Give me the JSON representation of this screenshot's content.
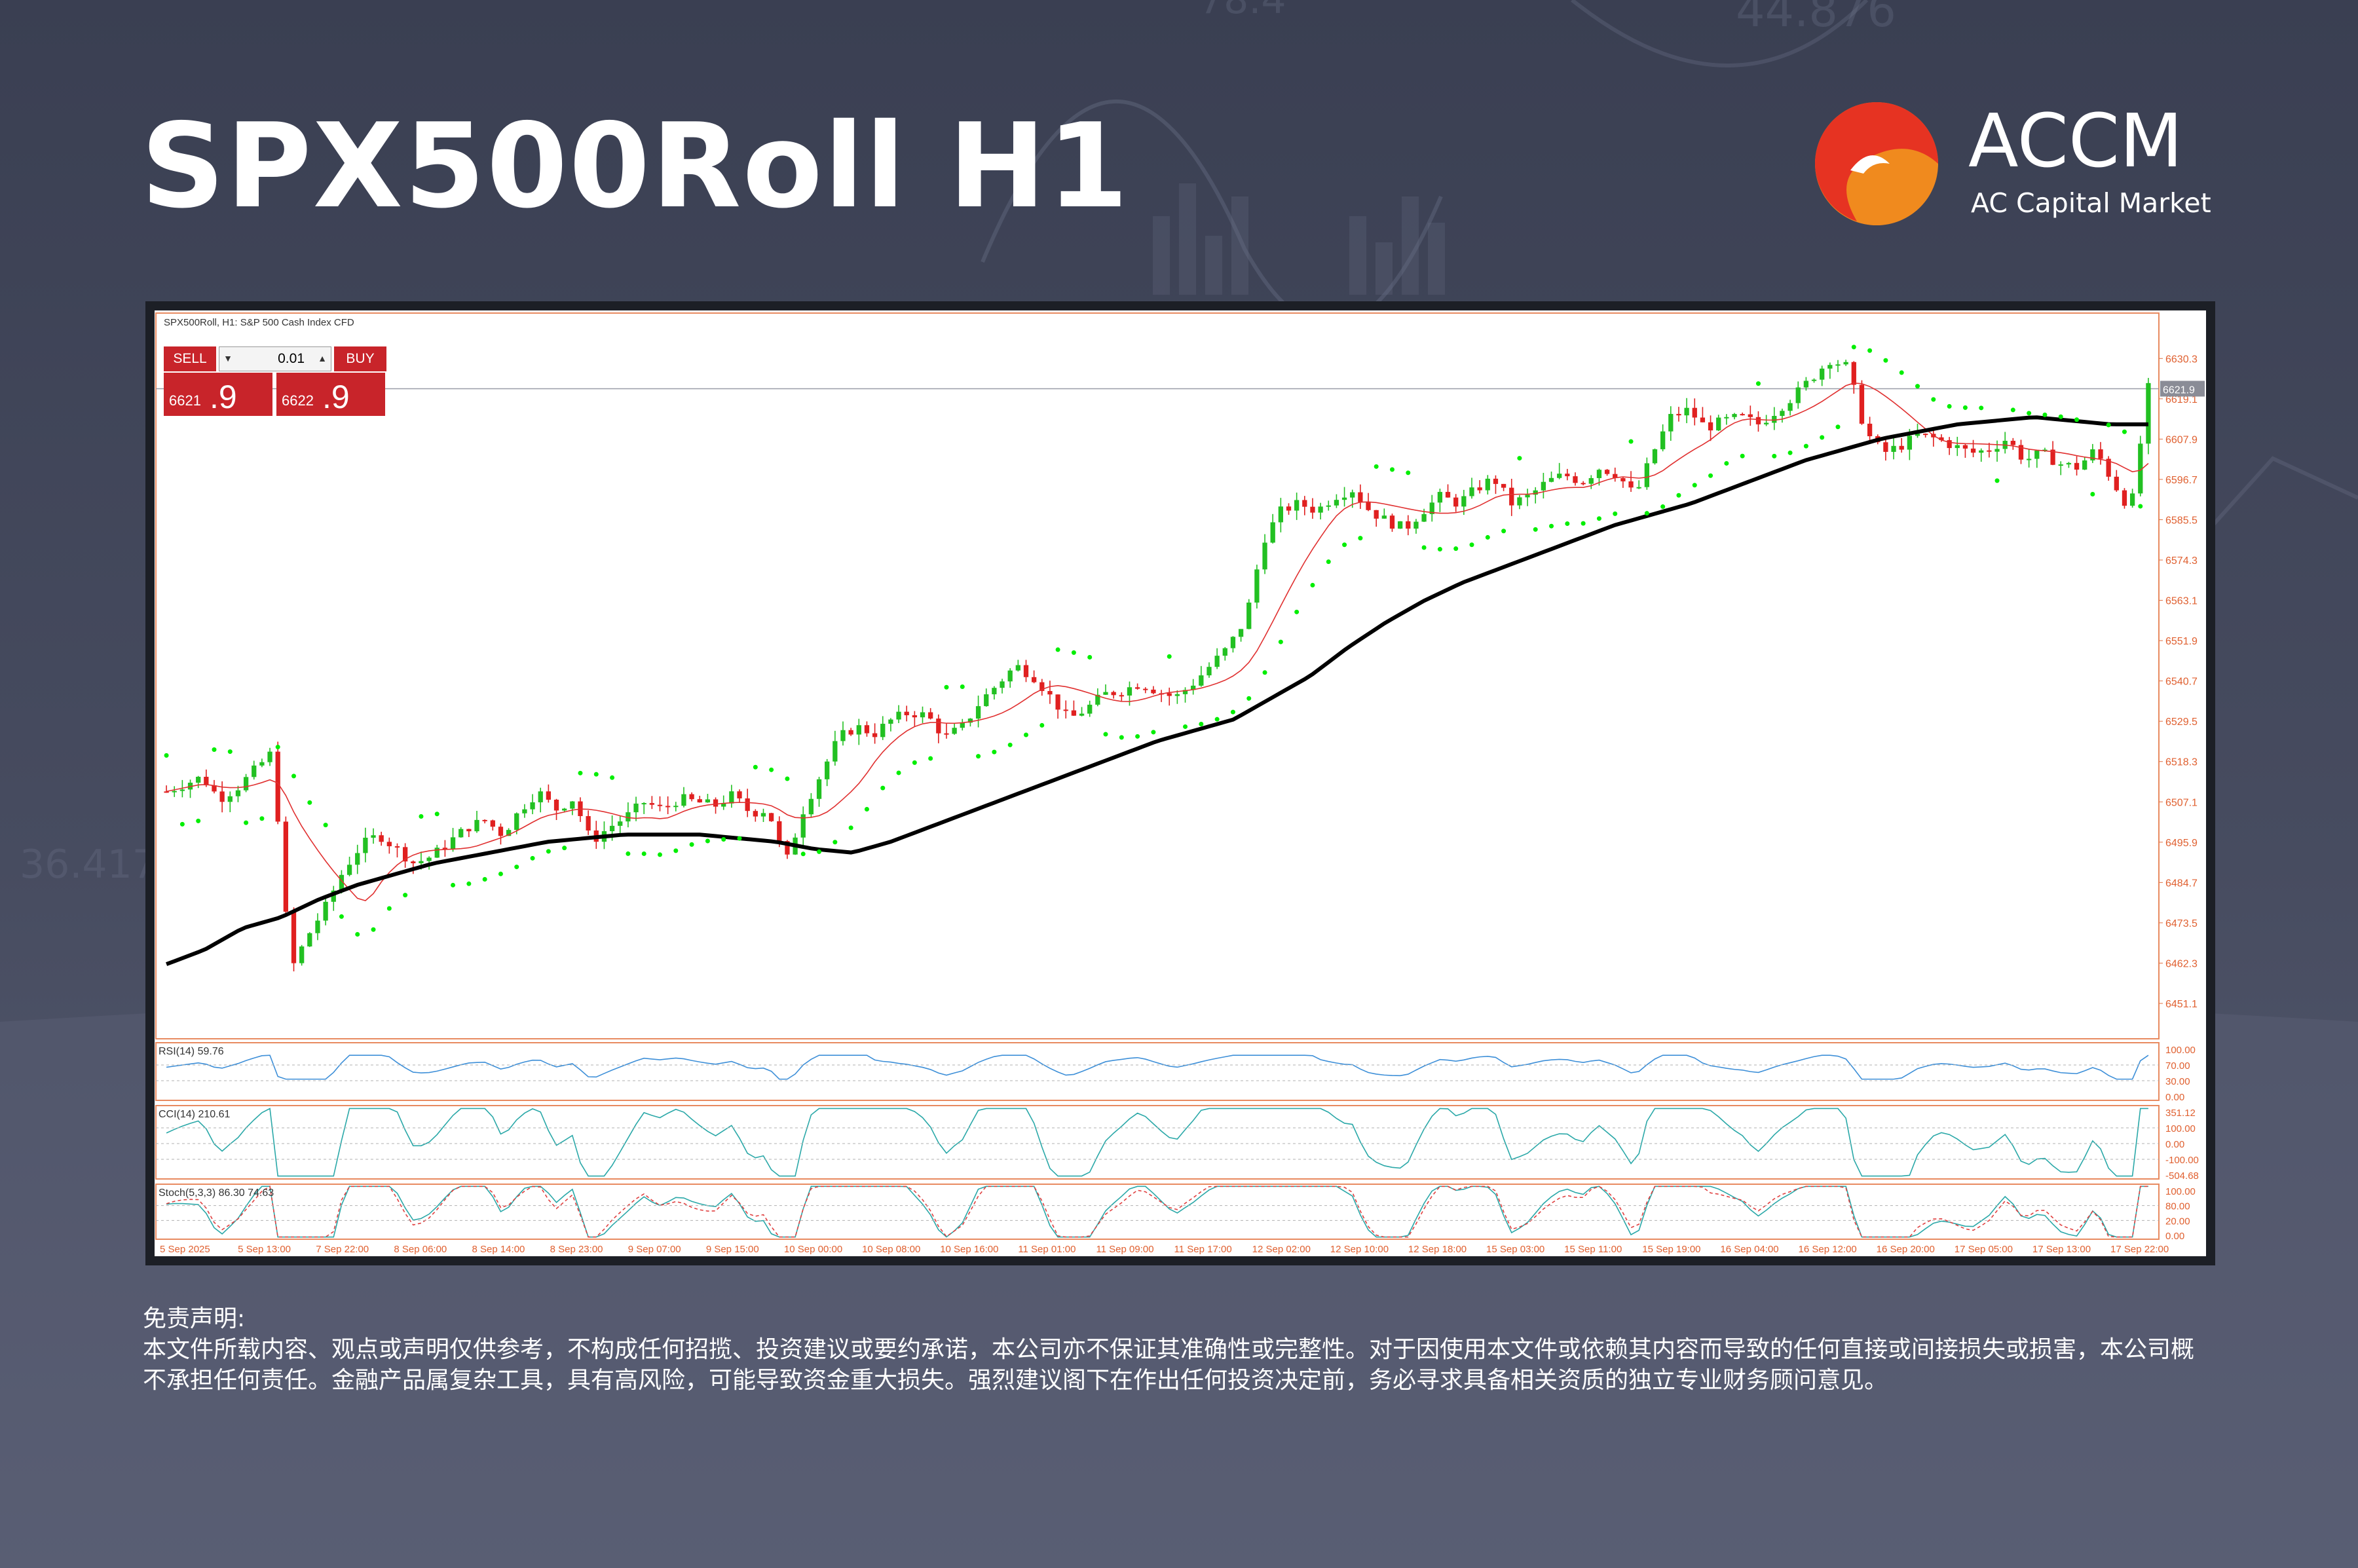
{
  "page": {
    "title": "SPX500Roll H1"
  },
  "brand": {
    "name": "ACCM",
    "subtitle": "AC Capital Market",
    "colors": {
      "orange": "#f08a1e",
      "red": "#e63322"
    }
  },
  "chart_header": "SPX500Roll, H1:  S&P 500 Cash Index CFD",
  "trade_panel": {
    "sell_label": "SELL",
    "buy_label": "BUY",
    "lot": "0.01",
    "sell_price_prefix": "6621",
    "sell_price_big": ".9",
    "buy_price_prefix": "6622",
    "buy_price_big": ".9"
  },
  "disclaimer": {
    "heading": "免责声明:",
    "body": "本文件所载内容、观点或声明仅供参考，不构成任何招揽、投资建议或要约承诺，本公司亦不保证其准确性或完整性。对于因使用本文件或依赖其内容而导致的任何直接或间接损失或损害，本公司概不承担任何责任。金融产品属复杂工具，具有高风险，可能导致资金重大损失。强烈建议阁下在作出任何投资决定前，务必寻求具备相关资质的独立专业财务顾问意见。"
  },
  "chart_data": {
    "type": "candlestick",
    "symbol": "SPX500Roll",
    "timeframe": "H1",
    "current_price": 6621.9,
    "ylim": [
      6442,
      6640
    ],
    "y_ticks": [
      "6630.3",
      "6619.1",
      "6607.9",
      "6596.7",
      "6585.5",
      "6574.3",
      "6563.1",
      "6551.9",
      "6540.7",
      "6529.5",
      "6518.3",
      "6507.1",
      "6495.9",
      "6484.7",
      "6473.5",
      "6462.3",
      "6451.1"
    ],
    "x_ticks": [
      "5 Sep 2025",
      "5 Sep 13:00",
      "7 Sep 22:00",
      "8 Sep 06:00",
      "8 Sep 14:00",
      "8 Sep 23:00",
      "9 Sep 07:00",
      "9 Sep 15:00",
      "10 Sep 00:00",
      "10 Sep 08:00",
      "10 Sep 16:00",
      "11 Sep 01:00",
      "11 Sep 09:00",
      "11 Sep 17:00",
      "12 Sep 02:00",
      "12 Sep 10:00",
      "12 Sep 18:00",
      "15 Sep 03:00",
      "15 Sep 11:00",
      "15 Sep 19:00",
      "16 Sep 04:00",
      "16 Sep 12:00",
      "16 Sep 20:00",
      "17 Sep 05:00",
      "17 Sep 13:00",
      "17 Sep 22:00"
    ],
    "close_path": [
      6510,
      6512,
      6514,
      6508,
      6511,
      6516,
      6521,
      6460,
      6470,
      6478,
      6488,
      6495,
      6498,
      6494,
      6490,
      6492,
      6496,
      6500,
      6502,
      6498,
      6505,
      6510,
      6505,
      6508,
      6496,
      6500,
      6503,
      6507,
      6505,
      6508,
      6507,
      6506,
      6509,
      6504,
      6505,
      6490,
      6505,
      6515,
      6525,
      6528,
      6526,
      6530,
      6532,
      6531,
      6525,
      6528,
      6535,
      6540,
      6545,
      6542,
      6536,
      6530,
      6533,
      6537,
      6538,
      6540,
      6538,
      6536,
      6540,
      6545,
      6550,
      6558,
      6580,
      6588,
      6590,
      6588,
      6592,
      6594,
      6588,
      6585,
      6583,
      6588,
      6592,
      6590,
      6594,
      6597,
      6590,
      6592,
      6596,
      6598,
      6596,
      6600,
      6598,
      6592,
      6604,
      6614,
      6616,
      6611,
      6613,
      6614,
      6612,
      6616,
      6620,
      6625,
      6630,
      6628,
      6610,
      6604,
      6606,
      6609,
      6608,
      6606,
      6604,
      6605,
      6608,
      6602,
      6604,
      6601,
      6600,
      6605,
      6596,
      6588,
      6622
    ],
    "ma_slow_path": [
      6462,
      6466,
      6472,
      6475,
      6480,
      6484,
      6487,
      6490,
      6492,
      6494,
      6496,
      6497,
      6498,
      6498,
      6498,
      6497,
      6496,
      6494,
      6493,
      6496,
      6500,
      6504,
      6508,
      6512,
      6516,
      6520,
      6524,
      6527,
      6530,
      6536,
      6542,
      6550,
      6557,
      6563,
      6568,
      6572,
      6576,
      6580,
      6584,
      6587,
      6590,
      6594,
      6598,
      6602,
      6605,
      6608,
      6610,
      6612,
      6613,
      6614,
      6613,
      6612,
      6612
    ],
    "indicators": {
      "rsi": {
        "label": "RSI(14) 59.76",
        "levels": [
          "100.00",
          "70.00",
          "30.00",
          "0.00"
        ]
      },
      "cci": {
        "label": "CCI(14) 210.61",
        "levels": [
          "351.12",
          "100.00",
          "0.00",
          "-100.00",
          "-504.68"
        ]
      },
      "stochastic": {
        "label": "Stoch(5,3,3) 86.30 74.63",
        "levels": [
          "100.00",
          "80.00",
          "20.00",
          "0.00"
        ]
      }
    }
  }
}
